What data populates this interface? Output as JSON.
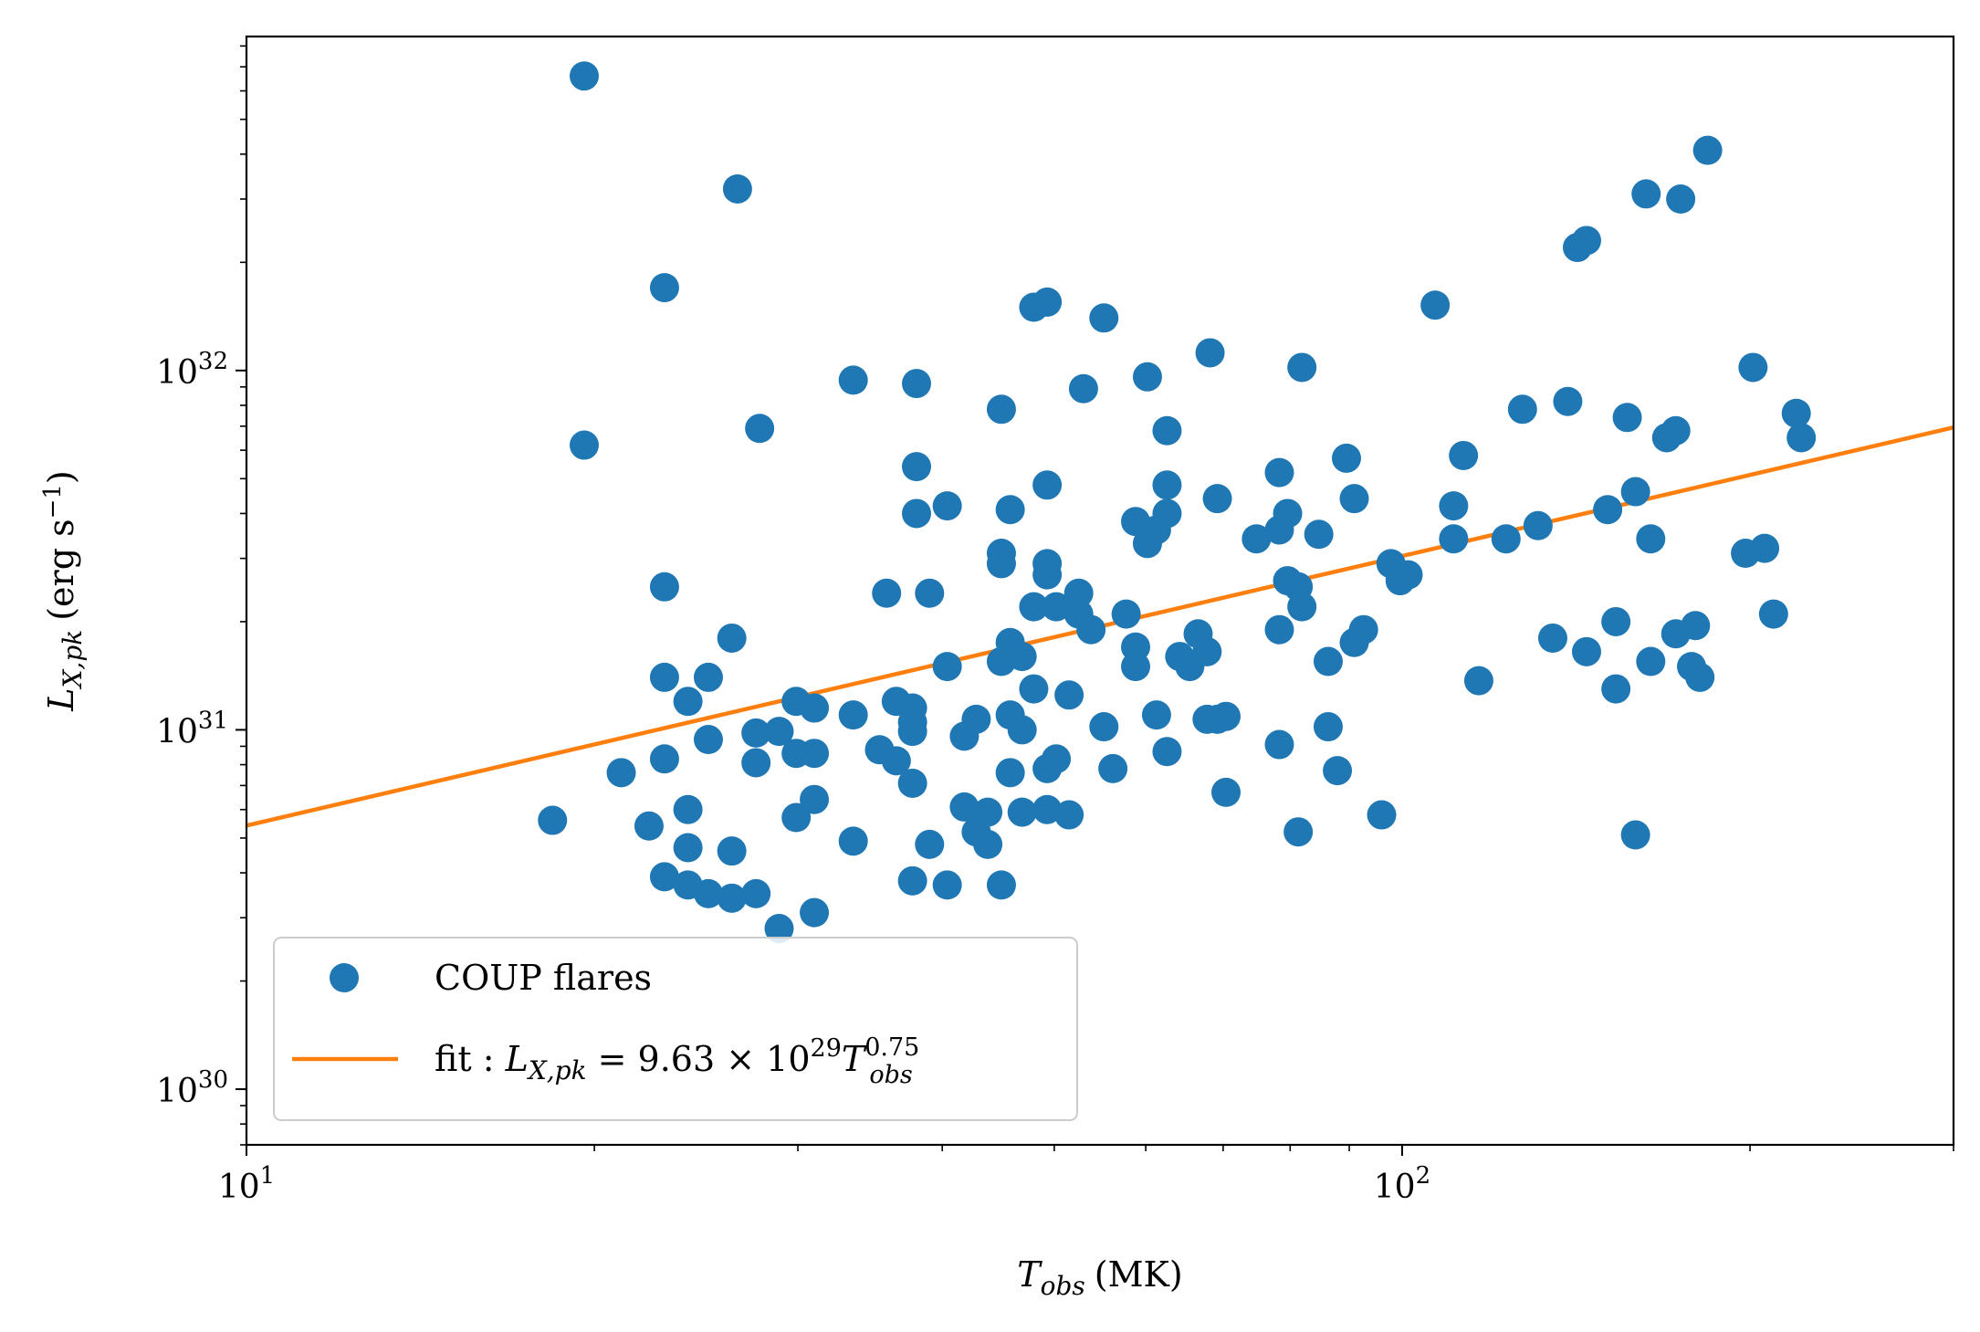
{
  "chart_data": {
    "type": "scatter",
    "x_scale": "log",
    "y_scale": "log",
    "xlim": [
      10,
      300
    ],
    "ylim": [
      7e+29,
      8.5e+32
    ],
    "colors": {
      "scatter": "#1f77b4",
      "fit": "#ff7f0e",
      "axis": "#000000",
      "legend_border": "#cccccc"
    },
    "xlabel": {
      "main": "T",
      "sub": "obs",
      "unit": "(MK)"
    },
    "ylabel": {
      "main": "L",
      "sub": "X,pk",
      "unit": "(erg s",
      "exp": "−1",
      "close": ")"
    },
    "x_ticks": [
      {
        "value": 10,
        "base": "10",
        "exp": "1"
      },
      {
        "value": 100,
        "base": "10",
        "exp": "2"
      }
    ],
    "y_ticks": [
      {
        "value": 1e+30,
        "base": "10",
        "exp": "30"
      },
      {
        "value": 1e+31,
        "base": "10",
        "exp": "31"
      },
      {
        "value": 1e+32,
        "base": "10",
        "exp": "32"
      }
    ],
    "legend": {
      "placement": "lower-left",
      "scatter_label": "COUP flares",
      "fit_prefix": "fit : ",
      "fit_L": "L",
      "fit_L_sub": "X,pk",
      "fit_eq": " = 9.63 × 10",
      "fit_exp": "29",
      "fit_T": "T",
      "fit_T_sub": "obs",
      "fit_T_exp": "0.75"
    },
    "fit": {
      "name": "fit",
      "coefficient": 9.63e+29,
      "exponent": 0.75,
      "x_range": [
        10,
        300
      ]
    },
    "series": [
      {
        "name": "COUP flares",
        "points": [
          [
            19.6,
            6.6e+32
          ],
          [
            26.6,
            3.2e+32
          ],
          [
            23.0,
            1.7e+32
          ],
          [
            19.6,
            6.2e+31
          ],
          [
            27.8,
            6.9e+31
          ],
          [
            18.4,
            5.6e+30
          ],
          [
            21.1,
            7.6e+30
          ],
          [
            22.3,
            5.4e+30
          ],
          [
            23.0,
            2.5e+31
          ],
          [
            23.0,
            1.4e+31
          ],
          [
            23.0,
            8.3e+30
          ],
          [
            23.0,
            3.9e+30
          ],
          [
            24.1,
            1.2e+31
          ],
          [
            24.1,
            6e+30
          ],
          [
            24.1,
            4.7e+30
          ],
          [
            24.1,
            3.7e+30
          ],
          [
            25.1,
            1.4e+31
          ],
          [
            25.1,
            9.4e+30
          ],
          [
            25.1,
            3.5e+30
          ],
          [
            26.3,
            1.8e+31
          ],
          [
            26.3,
            4.6e+30
          ],
          [
            26.3,
            3.4e+30
          ],
          [
            27.6,
            9.8e+30
          ],
          [
            27.6,
            8.1e+30
          ],
          [
            27.6,
            3.5e+30
          ],
          [
            28.9,
            9.9e+30
          ],
          [
            28.9,
            2.8e+30
          ],
          [
            29.9,
            1.2e+31
          ],
          [
            29.9,
            8.6e+30
          ],
          [
            29.9,
            5.7e+30
          ],
          [
            31.0,
            1.15e+31
          ],
          [
            31.0,
            8.6e+30
          ],
          [
            31.0,
            6.4e+30
          ],
          [
            31.0,
            3.1e+30
          ],
          [
            33.5,
            9.4e+31
          ],
          [
            33.5,
            1.1e+31
          ],
          [
            33.5,
            4.9e+30
          ],
          [
            35.3,
            8.8e+30
          ],
          [
            35.8,
            2.4e+31
          ],
          [
            36.5,
            8.2e+30
          ],
          [
            36.5,
            1.2e+31
          ],
          [
            37.7,
            1.15e+31
          ],
          [
            37.7,
            1.05e+31
          ],
          [
            37.7,
            9.9e+30
          ],
          [
            37.7,
            7.1e+30
          ],
          [
            37.7,
            3.8e+30
          ],
          [
            38.0,
            9.2e+31
          ],
          [
            38.0,
            5.4e+31
          ],
          [
            38.0,
            4e+31
          ],
          [
            39.0,
            2.4e+31
          ],
          [
            39.0,
            4.8e+30
          ],
          [
            40.4,
            4.2e+31
          ],
          [
            40.4,
            1.5e+31
          ],
          [
            40.4,
            3.7e+30
          ],
          [
            41.8,
            9.6e+30
          ],
          [
            41.8,
            6.1e+30
          ],
          [
            42.8,
            1.07e+31
          ],
          [
            42.8,
            5.2e+30
          ],
          [
            43.8,
            5.9e+30
          ],
          [
            43.8,
            4.8e+30
          ],
          [
            45.0,
            7.8e+31
          ],
          [
            45.0,
            3.1e+31
          ],
          [
            45.0,
            2.9e+31
          ],
          [
            45.0,
            1.55e+31
          ],
          [
            45.0,
            3.7e+30
          ],
          [
            45.8,
            4.1e+31
          ],
          [
            45.8,
            1.75e+31
          ],
          [
            45.8,
            1.1e+31
          ],
          [
            45.8,
            7.6e+30
          ],
          [
            46.9,
            1.6e+31
          ],
          [
            46.9,
            1e+31
          ],
          [
            46.9,
            5.9e+30
          ],
          [
            48.0,
            1.5e+32
          ],
          [
            48.0,
            2.2e+31
          ],
          [
            48.0,
            1.3e+31
          ],
          [
            49.3,
            1.55e+32
          ],
          [
            49.3,
            4.8e+31
          ],
          [
            49.3,
            2.9e+31
          ],
          [
            49.3,
            2.7e+31
          ],
          [
            49.3,
            7.8e+30
          ],
          [
            49.3,
            6e+30
          ],
          [
            50.2,
            2.2e+31
          ],
          [
            50.2,
            8.3e+30
          ],
          [
            51.5,
            1.25e+31
          ],
          [
            51.5,
            5.8e+30
          ],
          [
            52.5,
            2.4e+31
          ],
          [
            52.5,
            2.1e+31
          ],
          [
            53.0,
            8.9e+31
          ],
          [
            53.8,
            1.9e+31
          ],
          [
            55.2,
            1.4e+32
          ],
          [
            55.2,
            1.02e+31
          ],
          [
            56.2,
            7.8e+30
          ],
          [
            57.7,
            2.1e+31
          ],
          [
            58.8,
            3.8e+31
          ],
          [
            58.8,
            1.7e+31
          ],
          [
            58.8,
            1.5e+31
          ],
          [
            60.2,
            9.6e+31
          ],
          [
            60.2,
            3.3e+31
          ],
          [
            61.3,
            3.6e+31
          ],
          [
            61.3,
            1.1e+31
          ],
          [
            62.6,
            6.8e+31
          ],
          [
            62.6,
            4.8e+31
          ],
          [
            62.6,
            4e+31
          ],
          [
            62.6,
            8.7e+30
          ],
          [
            64.2,
            1.6e+31
          ],
          [
            65.5,
            1.5e+31
          ],
          [
            66.6,
            1.85e+31
          ],
          [
            67.8,
            1.65e+31
          ],
          [
            67.8,
            1.07e+31
          ],
          [
            68.2,
            1.12e+32
          ],
          [
            69.2,
            4.4e+31
          ],
          [
            69.2,
            1.07e+31
          ],
          [
            70.4,
            1.09e+31
          ],
          [
            70.4,
            6.7e+30
          ],
          [
            74.8,
            3.4e+31
          ],
          [
            78.3,
            5.2e+31
          ],
          [
            78.3,
            3.6e+31
          ],
          [
            78.3,
            1.9e+31
          ],
          [
            78.3,
            9.1e+30
          ],
          [
            79.6,
            4e+31
          ],
          [
            79.6,
            2.6e+31
          ],
          [
            81.3,
            2.5e+31
          ],
          [
            81.9,
            1.02e+32
          ],
          [
            81.9,
            2.2e+31
          ],
          [
            81.3,
            5.2e+30
          ],
          [
            84.7,
            3.5e+31
          ],
          [
            86.3,
            1.55e+31
          ],
          [
            86.3,
            1.02e+31
          ],
          [
            87.9,
            7.7e+30
          ],
          [
            89.5,
            5.7e+31
          ],
          [
            90.9,
            4.4e+31
          ],
          [
            90.9,
            1.75e+31
          ],
          [
            92.6,
            1.9e+31
          ],
          [
            96.0,
            5.8e+30
          ],
          [
            97.8,
            2.9e+31
          ],
          [
            99.6,
            2.6e+31
          ],
          [
            101.2,
            2.7e+31
          ],
          [
            106.8,
            1.52e+32
          ],
          [
            110.8,
            4.2e+31
          ],
          [
            110.8,
            3.4e+31
          ],
          [
            113.0,
            5.8e+31
          ],
          [
            116.5,
            1.37e+31
          ],
          [
            123.0,
            3.4e+31
          ],
          [
            127.1,
            7.8e+31
          ],
          [
            131.1,
            3.7e+31
          ],
          [
            135.0,
            1.8e+31
          ],
          [
            139.1,
            8.2e+31
          ],
          [
            141.8,
            2.2e+32
          ],
          [
            144.4,
            2.3e+32
          ],
          [
            144.4,
            1.65e+31
          ],
          [
            150.6,
            4.1e+31
          ],
          [
            153.1,
            2e+31
          ],
          [
            153.1,
            1.3e+31
          ],
          [
            156.6,
            7.4e+31
          ],
          [
            159.2,
            4.6e+31
          ],
          [
            159.2,
            5.1e+30
          ],
          [
            162.6,
            3.1e+32
          ],
          [
            164.1,
            3.4e+31
          ],
          [
            164.1,
            1.55e+31
          ],
          [
            169.4,
            6.5e+31
          ],
          [
            172.5,
            6.8e+31
          ],
          [
            172.5,
            1.85e+31
          ],
          [
            174.2,
            3e+32
          ],
          [
            178.0,
            1.5e+31
          ],
          [
            179.4,
            1.95e+31
          ],
          [
            181.0,
            1.4e+31
          ],
          [
            183.8,
            4.1e+32
          ],
          [
            198.2,
            3.1e+31
          ],
          [
            201.2,
            1.02e+32
          ],
          [
            205.9,
            3.2e+31
          ],
          [
            209.6,
            2.1e+31
          ],
          [
            219.3,
            7.6e+31
          ],
          [
            221.5,
            6.5e+31
          ]
        ]
      }
    ]
  }
}
